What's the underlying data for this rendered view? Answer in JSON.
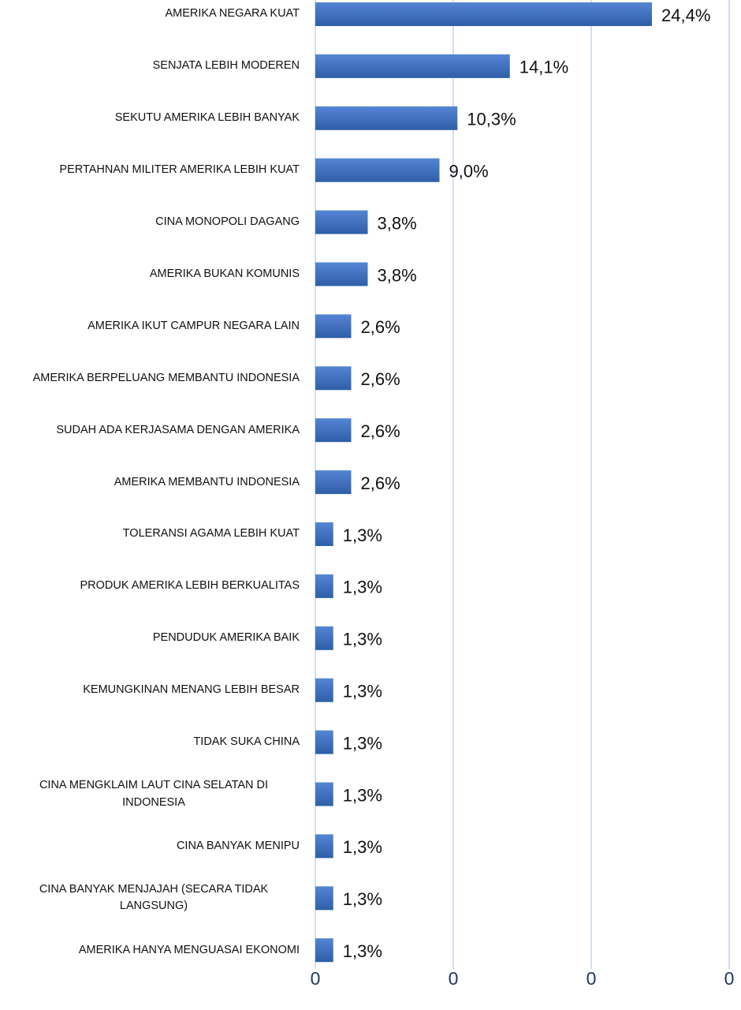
{
  "chart_data": {
    "type": "barh",
    "categories": [
      "AMERIKA NEGARA KUAT",
      "SENJATA LEBIH MODEREN",
      "SEKUTU AMERIKA LEBIH BANYAK",
      "PERTAHNAN MILITER AMERIKA LEBIH KUAT",
      "CINA MONOPOLI DAGANG",
      "AMERIKA BUKAN KOMUNIS",
      "AMERIKA IKUT CAMPUR NEGARA LAIN",
      "AMERIKA BERPELUANG MEMBANTU INDONESIA",
      "SUDAH ADA KERJASAMA DENGAN AMERIKA",
      "AMERIKA MEMBANTU INDONESIA",
      "TOLERANSI AGAMA LEBIH KUAT",
      "PRODUK AMERIKA LEBIH BERKUALITAS",
      "PENDUDUK AMERIKA  BAIK",
      "KEMUNGKINAN MENANG LEBIH BESAR",
      "TIDAK SUKA CHINA",
      "CINA MENGKLAIM LAUT CINA SELATAN DI INDONESIA",
      "CINA BANYAK MENIPU",
      "CINA BANYAK MENJAJAH (SECARA TIDAK LANGSUNG)",
      "AMERIKA HANYA MENGUASAI EKONOMI"
    ],
    "values": [
      0.244,
      0.141,
      0.103,
      0.09,
      0.038,
      0.038,
      0.026,
      0.026,
      0.026,
      0.026,
      0.013,
      0.013,
      0.013,
      0.013,
      0.013,
      0.013,
      0.013,
      0.013,
      0.013
    ],
    "value_labels": [
      "24,4%",
      "14,1%",
      "10,3%",
      "9,0%",
      "3,8%",
      "3,8%",
      "2,6%",
      "2,6%",
      "2,6%",
      "2,6%",
      "1,3%",
      "1,3%",
      "1,3%",
      "1,3%",
      "1,3%",
      "1,3%",
      "1,3%",
      "1,3%",
      "1,3%"
    ],
    "color": "#4472c4",
    "xlim": [
      0,
      0.3
    ],
    "xticks": [
      0,
      {
        "value": 0.1,
        "label": "0"
      },
      {
        "value": 0.2,
        "label": "0"
      },
      {
        "value": 0.3,
        "label": "0"
      }
    ],
    "grid": true
  }
}
